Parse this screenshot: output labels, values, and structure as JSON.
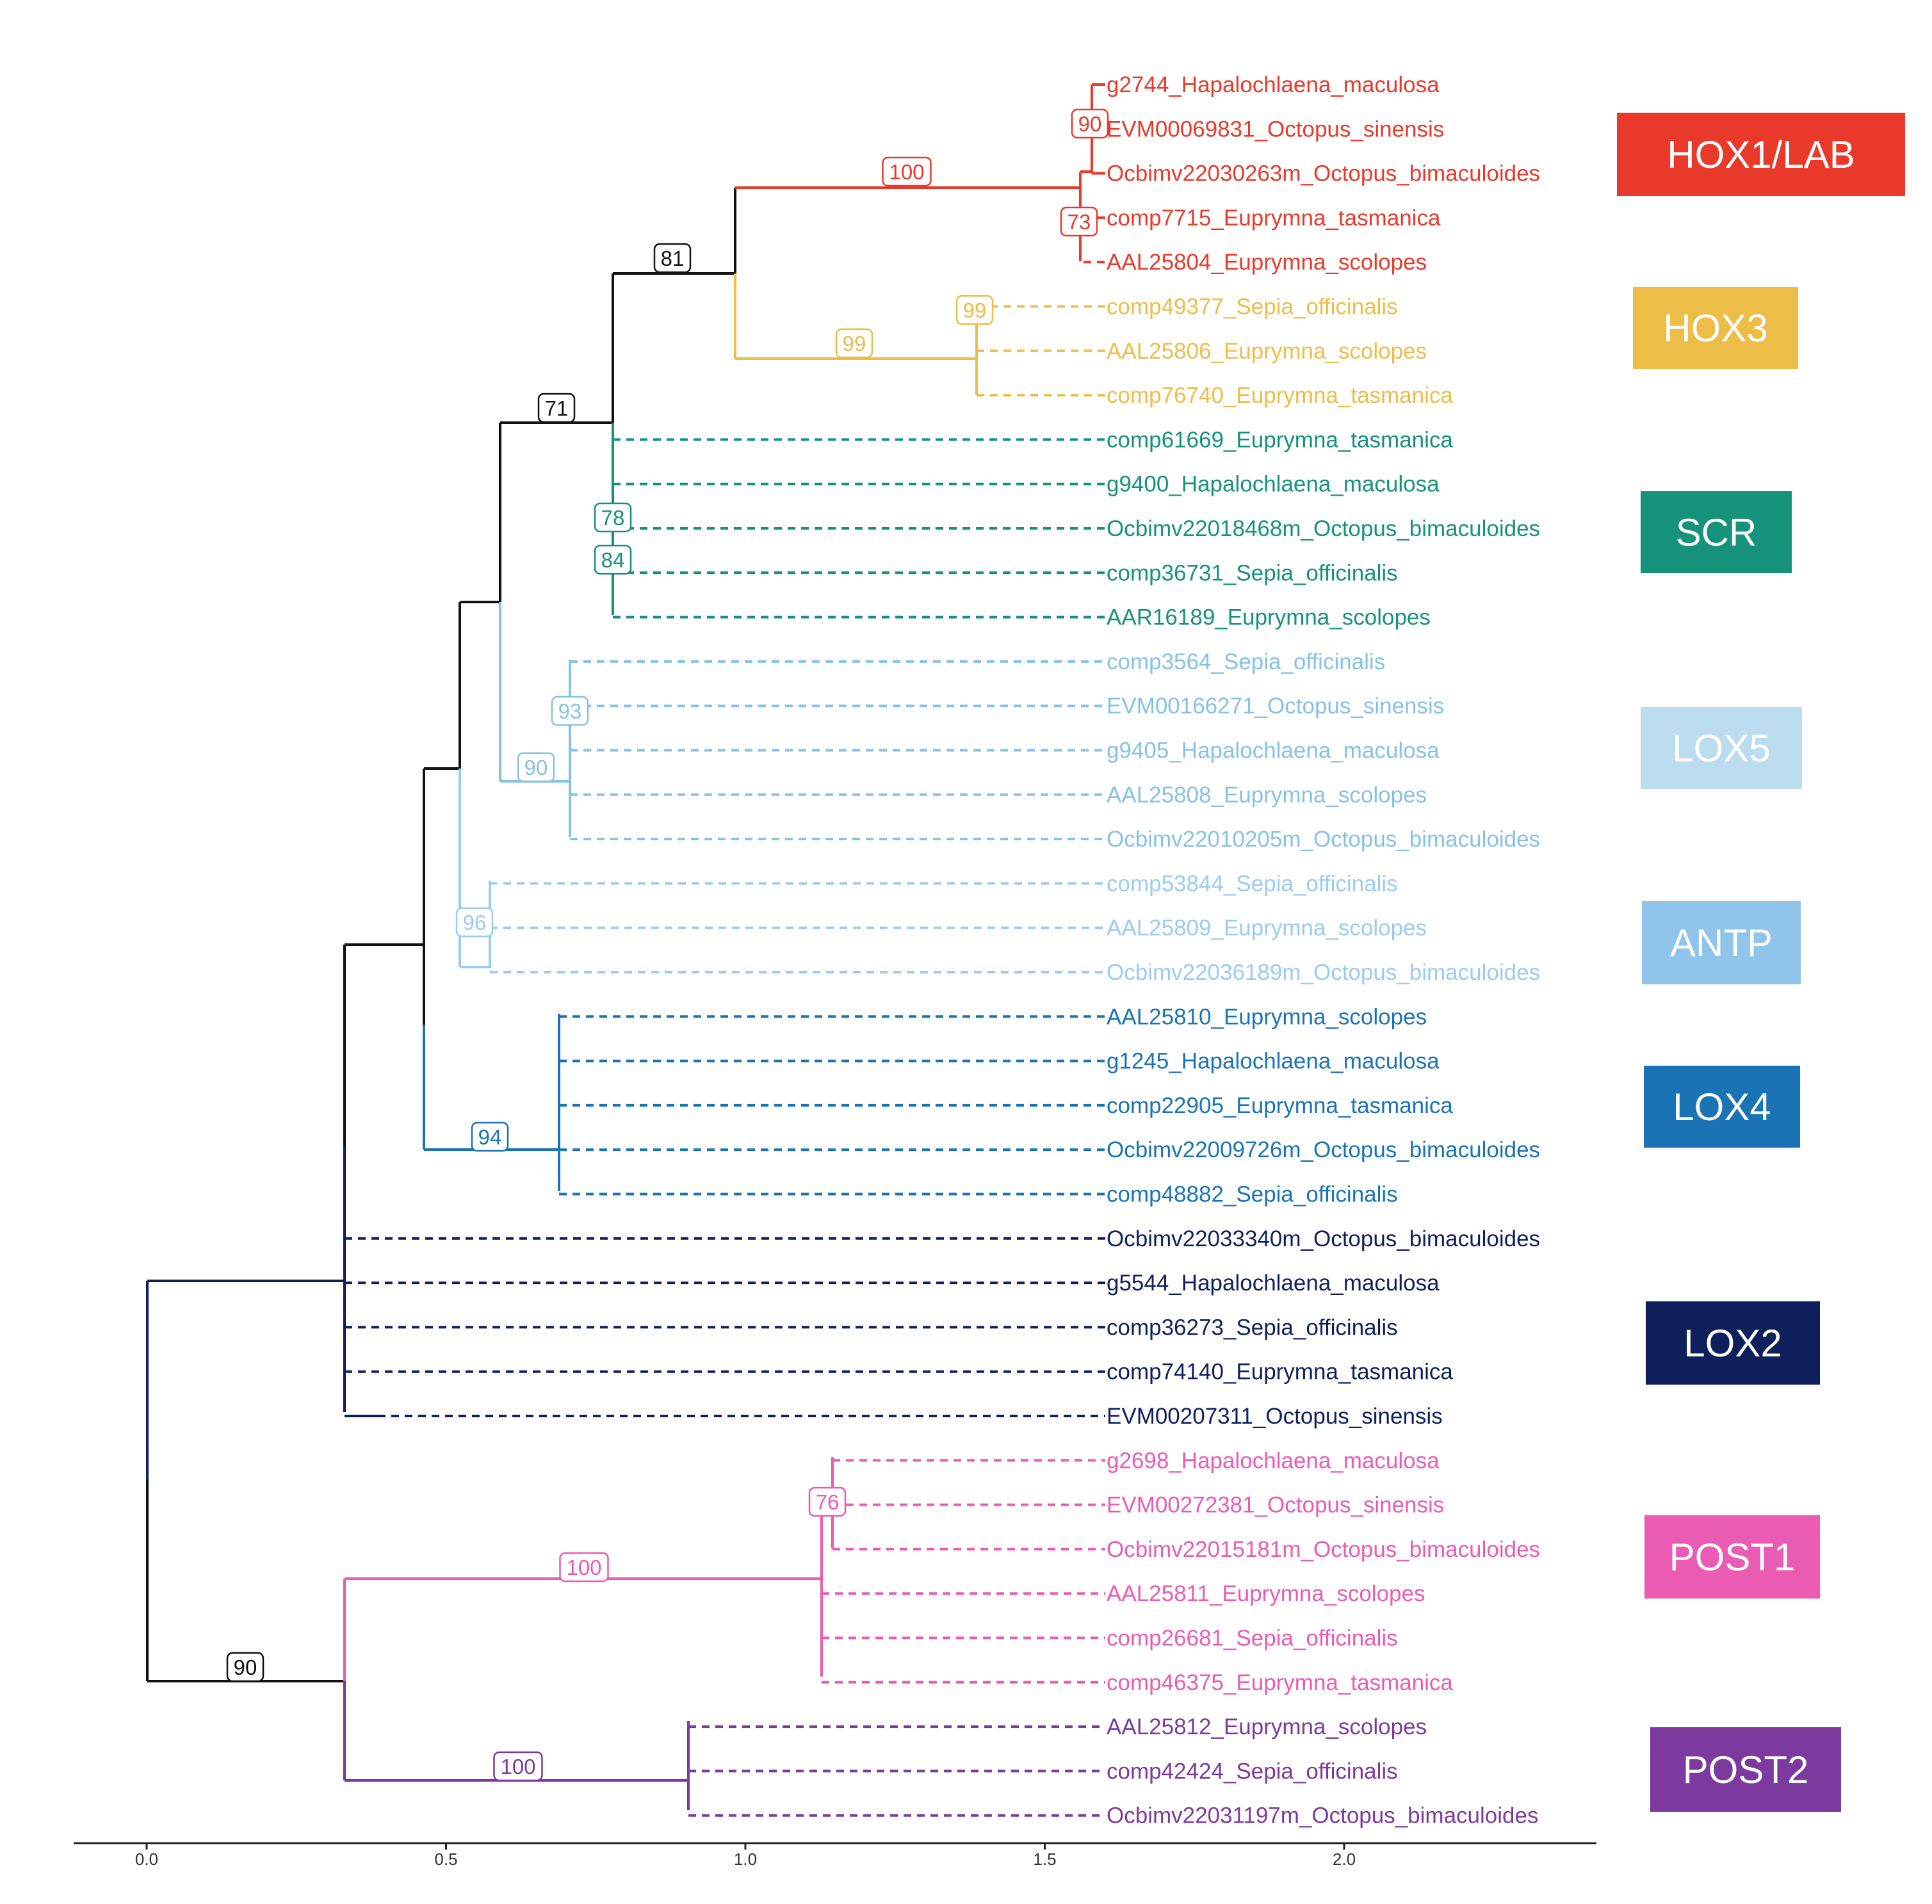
{
  "axis": {
    "ticks": [
      "0.0",
      "0.5",
      "1.0",
      "1.5",
      "2.0"
    ]
  },
  "colors": {
    "black": "#111111",
    "hox1": "#e8392b",
    "hox3": "#ecbd47",
    "scr": "#16927a",
    "lox5": "#86c2e6",
    "antp": "#9ccbf0",
    "lox4": "#1a73b5",
    "lox2": "#0f1f5c",
    "post1": "#ea5bb3",
    "post2": "#7c3a9e"
  },
  "clades": [
    {
      "label": "HOX1/LAB",
      "color": "#e8392b",
      "text_color": "#ffffff"
    },
    {
      "label": "HOX3",
      "color": "#ecbd47",
      "text_color": "#ffffff"
    },
    {
      "label": "SCR",
      "color": "#16927a",
      "text_color": "#ffffff"
    },
    {
      "label": "LOX5",
      "color": "#bcdcf0",
      "text_color": "#ffffff"
    },
    {
      "label": "ANTP",
      "color": "#90c4ea",
      "text_color": "#ffffff"
    },
    {
      "label": "LOX4",
      "color": "#1a73b5",
      "text_color": "#ffffff"
    },
    {
      "label": "LOX2",
      "color": "#0f1f5c",
      "text_color": "#ffffff"
    },
    {
      "label": "POST1",
      "color": "#ea5bb3",
      "text_color": "#ffffff"
    },
    {
      "label": "POST2",
      "color": "#7c3a9e",
      "text_color": "#ffffff"
    }
  ],
  "tips": [
    {
      "label": "g2744_Hapalochlaena_maculosa",
      "clade": "hox1"
    },
    {
      "label": "EVM00069831_Octopus_sinensis",
      "clade": "hox1"
    },
    {
      "label": "Ocbimv22030263m_Octopus_bimaculoides",
      "clade": "hox1"
    },
    {
      "label": "comp7715_Euprymna_tasmanica",
      "clade": "hox1"
    },
    {
      "label": "AAL25804_Euprymna_scolopes",
      "clade": "hox1"
    },
    {
      "label": "comp49377_Sepia_officinalis",
      "clade": "hox3"
    },
    {
      "label": "AAL25806_Euprymna_scolopes",
      "clade": "hox3"
    },
    {
      "label": "comp76740_Euprymna_tasmanica",
      "clade": "hox3"
    },
    {
      "label": "comp61669_Euprymna_tasmanica",
      "clade": "scr"
    },
    {
      "label": "g9400_Hapalochlaena_maculosa",
      "clade": "scr"
    },
    {
      "label": "Ocbimv22018468m_Octopus_bimaculoides",
      "clade": "scr"
    },
    {
      "label": "comp36731_Sepia_officinalis",
      "clade": "scr"
    },
    {
      "label": "AAR16189_Euprymna_scolopes",
      "clade": "scr"
    },
    {
      "label": "comp3564_Sepia_officinalis",
      "clade": "lox5"
    },
    {
      "label": "EVM00166271_Octopus_sinensis",
      "clade": "lox5"
    },
    {
      "label": "g9405_Hapalochlaena_maculosa",
      "clade": "lox5"
    },
    {
      "label": "AAL25808_Euprymna_scolopes",
      "clade": "lox5"
    },
    {
      "label": "Ocbimv22010205m_Octopus_bimaculoides",
      "clade": "lox5"
    },
    {
      "label": "comp53844_Sepia_officinalis",
      "clade": "antp"
    },
    {
      "label": "AAL25809_Euprymna_scolopes",
      "clade": "antp"
    },
    {
      "label": "Ocbimv22036189m_Octopus_bimaculoides",
      "clade": "antp"
    },
    {
      "label": "AAL25810_Euprymna_scolopes",
      "clade": "lox4"
    },
    {
      "label": "g1245_Hapalochlaena_maculosa",
      "clade": "lox4"
    },
    {
      "label": "comp22905_Euprymna_tasmanica",
      "clade": "lox4"
    },
    {
      "label": "Ocbimv22009726m_Octopus_bimaculoides",
      "clade": "lox4"
    },
    {
      "label": "comp48882_Sepia_officinalis",
      "clade": "lox4"
    },
    {
      "label": "Ocbimv22033340m_Octopus_bimaculoides",
      "clade": "lox2"
    },
    {
      "label": "g5544_Hapalochlaena_maculosa",
      "clade": "lox2"
    },
    {
      "label": "comp36273_Sepia_officinalis",
      "clade": "lox2"
    },
    {
      "label": "comp74140_Euprymna_tasmanica",
      "clade": "lox2"
    },
    {
      "label": "EVM00207311_Octopus_sinensis",
      "clade": "lox2"
    },
    {
      "label": "g2698_Hapalochlaena_maculosa",
      "clade": "post1"
    },
    {
      "label": "EVM00272381_Octopus_sinensis",
      "clade": "post1"
    },
    {
      "label": "Ocbimv22015181m_Octopus_bimaculoides",
      "clade": "post1"
    },
    {
      "label": "AAL25811_Euprymna_scolopes",
      "clade": "post1"
    },
    {
      "label": "comp26681_Sepia_officinalis",
      "clade": "post1"
    },
    {
      "label": "comp46375_Euprymna_tasmanica",
      "clade": "post1"
    },
    {
      "label": "AAL25812_Euprymna_scolopes",
      "clade": "post2"
    },
    {
      "label": "comp42424_Sepia_officinalis",
      "clade": "post2"
    },
    {
      "label": "Ocbimv22031197m_Octopus_bimaculoides",
      "clade": "post2"
    }
  ],
  "bootstrap": [
    {
      "value": "100",
      "clade": "hox1"
    },
    {
      "value": "90",
      "clade": "hox1"
    },
    {
      "value": "73",
      "clade": "hox1"
    },
    {
      "value": "81",
      "clade": "black"
    },
    {
      "value": "99",
      "clade": "hox3"
    },
    {
      "value": "99",
      "clade": "hox3"
    },
    {
      "value": "71",
      "clade": "black"
    },
    {
      "value": "78",
      "clade": "scr"
    },
    {
      "value": "84",
      "clade": "scr"
    },
    {
      "value": "93",
      "clade": "lox5"
    },
    {
      "value": "90",
      "clade": "lox5"
    },
    {
      "value": "96",
      "clade": "antp"
    },
    {
      "value": "94",
      "clade": "lox4"
    },
    {
      "value": "76",
      "clade": "post1"
    },
    {
      "value": "100",
      "clade": "post1"
    },
    {
      "value": "90",
      "clade": "black"
    },
    {
      "value": "100",
      "clade": "post2"
    }
  ]
}
